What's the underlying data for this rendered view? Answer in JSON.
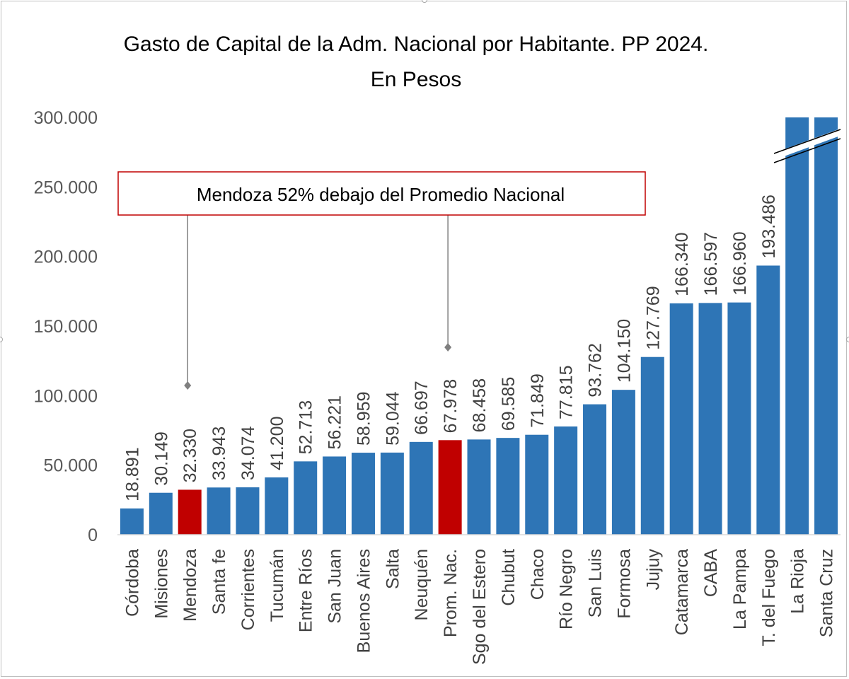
{
  "colors": {
    "bar": "#2e75b6",
    "highlight": "#c00000",
    "callout_border": "#c00000",
    "connector": "#7f7f7f",
    "axis": "#d9d9d9"
  },
  "chart_data": {
    "type": "bar",
    "title": "Gasto de Capital de la Adm. Nacional por Habitante. PP 2024.",
    "subtitle": "En Pesos",
    "xlabel": "",
    "ylabel": "",
    "ylim": [
      0,
      300000
    ],
    "yticks": [
      0,
      50000,
      100000,
      150000,
      200000,
      250000,
      300000
    ],
    "ytick_labels": [
      "0",
      "50.000",
      "100.000",
      "150.000",
      "200.000",
      "250.000",
      "300.000"
    ],
    "grid": false,
    "axis_break": "La Rioja / Santa Cruz truncated at 300.000",
    "categories": [
      "Córdoba",
      "Misiones",
      "Mendoza",
      "Santa fe",
      "Corrientes",
      "Tucumán",
      "Entre Ríos",
      "San Juan",
      "Buenos Aires",
      "Salta",
      "Neuquén",
      "Prom. Nac.",
      "Sgo del Estero",
      "Chubut",
      "Chaco",
      "Río Negro",
      "San Luis",
      "Formosa",
      "Jujuy",
      "Catamarca",
      "CABA",
      "La Pampa",
      "T. del Fuego",
      "La Rioja",
      "Santa Cruz"
    ],
    "values": [
      18891,
      30149,
      32330,
      33943,
      34074,
      41200,
      52713,
      56221,
      58959,
      59044,
      66697,
      67978,
      68458,
      69585,
      71849,
      77815,
      93762,
      104150,
      127769,
      166340,
      166597,
      166960,
      193486,
      300000,
      300000
    ],
    "data_labels": [
      "18.891",
      "30.149",
      "32.330",
      "33.943",
      "34.074",
      "41.200",
      "52.713",
      "56.221",
      "58.959",
      "59.044",
      "66.697",
      "67.978",
      "68.458",
      "69.585",
      "71.849",
      "77.815",
      "93.762",
      "104.150",
      "127.769",
      "166.340",
      "166.597",
      "166.960",
      "193.486",
      "",
      ""
    ],
    "highlighted": [
      "Mendoza",
      "Prom. Nac."
    ],
    "annotation": {
      "text": "Mendoza 52% debajo del Promedio Nacional",
      "targets": [
        "Mendoza",
        "Prom. Nac."
      ]
    }
  }
}
